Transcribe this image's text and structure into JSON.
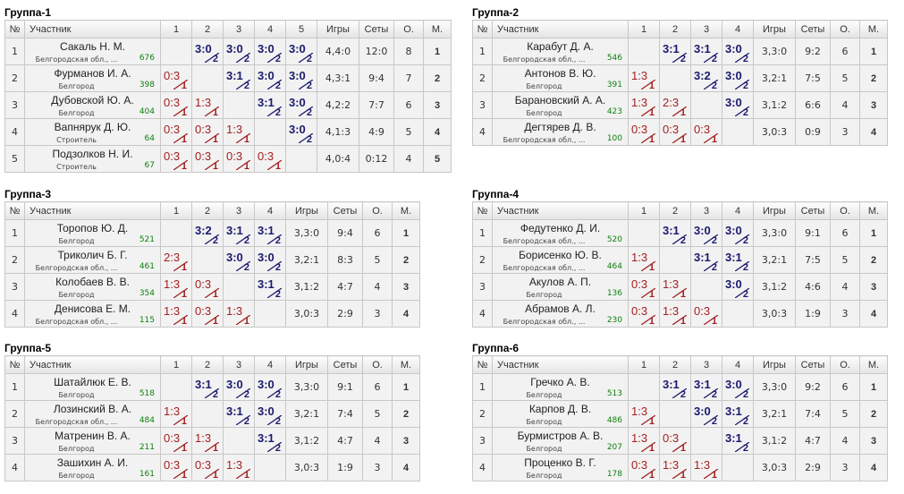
{
  "headers": {
    "num": "№",
    "participant": "Участник",
    "games": "Игры",
    "sets": "Сеты",
    "points": "О.",
    "place": "М."
  },
  "colors": {
    "win": "#1a1a6e",
    "loss": "#a32020",
    "rating": "#108010",
    "place": "#1a2a8a",
    "self_cell": "#cccccc"
  },
  "groups": [
    {
      "title": "Группа-1",
      "players": [
        {
          "n": "1",
          "name": "Сакаль Н. М.",
          "city": "Белгородская обл., ...",
          "rating": "676",
          "results": [
            null,
            {
              "s": "3:0",
              "p": "2"
            },
            {
              "s": "3:0",
              "p": "2"
            },
            {
              "s": "3:0",
              "p": "2"
            },
            {
              "s": "3:0",
              "p": "2"
            }
          ],
          "games": "4,4:0",
          "sets": "12:0",
          "points": "8",
          "place": "1"
        },
        {
          "n": "2",
          "name": "Фурманов И. А.",
          "city": "Белгород",
          "rating": "398",
          "results": [
            {
              "s": "0:3",
              "p": "1"
            },
            null,
            {
              "s": "3:1",
              "p": "2"
            },
            {
              "s": "3:0",
              "p": "2"
            },
            {
              "s": "3:0",
              "p": "2"
            }
          ],
          "games": "4,3:1",
          "sets": "9:4",
          "points": "7",
          "place": "2"
        },
        {
          "n": "3",
          "name": "Дубовской Ю. А.",
          "city": "Белгород",
          "rating": "404",
          "results": [
            {
              "s": "0:3",
              "p": "1"
            },
            {
              "s": "1:3",
              "p": "1"
            },
            null,
            {
              "s": "3:1",
              "p": "2"
            },
            {
              "s": "3:0",
              "p": "2"
            }
          ],
          "games": "4,2:2",
          "sets": "7:7",
          "points": "6",
          "place": "3"
        },
        {
          "n": "4",
          "name": "Вапнярук Д. Ю.",
          "city": "Строитель",
          "rating": "64",
          "results": [
            {
              "s": "0:3",
              "p": "1"
            },
            {
              "s": "0:3",
              "p": "1"
            },
            {
              "s": "1:3",
              "p": "1"
            },
            null,
            {
              "s": "3:0",
              "p": "2"
            }
          ],
          "games": "4,1:3",
          "sets": "4:9",
          "points": "5",
          "place": "4"
        },
        {
          "n": "5",
          "name": "Подзолков Н. И.",
          "city": "Строитель",
          "rating": "67",
          "results": [
            {
              "s": "0:3",
              "p": "1"
            },
            {
              "s": "0:3",
              "p": "1"
            },
            {
              "s": "0:3",
              "p": "1"
            },
            {
              "s": "0:3",
              "p": "1"
            },
            null
          ],
          "games": "4,0:4",
          "sets": "0:12",
          "points": "4",
          "place": "5"
        }
      ]
    },
    {
      "title": "Группа-2",
      "players": [
        {
          "n": "1",
          "name": "Карабут Д. А.",
          "city": "Белгородская обл., ...",
          "rating": "546",
          "results": [
            null,
            {
              "s": "3:1",
              "p": "2"
            },
            {
              "s": "3:1",
              "p": "2"
            },
            {
              "s": "3:0",
              "p": "2"
            }
          ],
          "games": "3,3:0",
          "sets": "9:2",
          "points": "6",
          "place": "1"
        },
        {
          "n": "2",
          "name": "Антонов В. Ю.",
          "city": "Белгород",
          "rating": "391",
          "results": [
            {
              "s": "1:3",
              "p": "1"
            },
            null,
            {
              "s": "3:2",
              "p": "2"
            },
            {
              "s": "3:0",
              "p": "2"
            }
          ],
          "games": "3,2:1",
          "sets": "7:5",
          "points": "5",
          "place": "2"
        },
        {
          "n": "3",
          "name": "Барановский А. А.",
          "city": "Белгород",
          "rating": "423",
          "results": [
            {
              "s": "1:3",
              "p": "1"
            },
            {
              "s": "2:3",
              "p": "1"
            },
            null,
            {
              "s": "3:0",
              "p": "2"
            }
          ],
          "games": "3,1:2",
          "sets": "6:6",
          "points": "4",
          "place": "3"
        },
        {
          "n": "4",
          "name": "Дегтярев Д. В.",
          "city": "Белгородская обл., ...",
          "rating": "100",
          "results": [
            {
              "s": "0:3",
              "p": "1"
            },
            {
              "s": "0:3",
              "p": "1"
            },
            {
              "s": "0:3",
              "p": "1"
            },
            null
          ],
          "games": "3,0:3",
          "sets": "0:9",
          "points": "3",
          "place": "4"
        }
      ]
    },
    {
      "title": "Группа-3",
      "players": [
        {
          "n": "1",
          "name": "Торопов Ю. Д.",
          "city": "Белгород",
          "rating": "521",
          "results": [
            null,
            {
              "s": "3:2",
              "p": "2"
            },
            {
              "s": "3:1",
              "p": "2"
            },
            {
              "s": "3:1",
              "p": "2"
            }
          ],
          "games": "3,3:0",
          "sets": "9:4",
          "points": "6",
          "place": "1"
        },
        {
          "n": "2",
          "name": "Триколич Б. Г.",
          "city": "Белгородская обл., ...",
          "rating": "461",
          "results": [
            {
              "s": "2:3",
              "p": "1"
            },
            null,
            {
              "s": "3:0",
              "p": "2"
            },
            {
              "s": "3:0",
              "p": "2"
            }
          ],
          "games": "3,2:1",
          "sets": "8:3",
          "points": "5",
          "place": "2"
        },
        {
          "n": "3",
          "name": "Колобаев В. В.",
          "city": "Белгород",
          "rating": "354",
          "results": [
            {
              "s": "1:3",
              "p": "1"
            },
            {
              "s": "0:3",
              "p": "1"
            },
            null,
            {
              "s": "3:1",
              "p": "2"
            }
          ],
          "games": "3,1:2",
          "sets": "4:7",
          "points": "4",
          "place": "3"
        },
        {
          "n": "4",
          "name": "Денисова Е. М.",
          "city": "Белгородская обл., ...",
          "rating": "115",
          "results": [
            {
              "s": "1:3",
              "p": "1"
            },
            {
              "s": "0:3",
              "p": "1"
            },
            {
              "s": "1:3",
              "p": "1"
            },
            null
          ],
          "games": "3,0:3",
          "sets": "2:9",
          "points": "3",
          "place": "4"
        }
      ]
    },
    {
      "title": "Группа-4",
      "players": [
        {
          "n": "1",
          "name": "Федутенко Д. И.",
          "city": "Белгородская обл., ...",
          "rating": "520",
          "results": [
            null,
            {
              "s": "3:1",
              "p": "2"
            },
            {
              "s": "3:0",
              "p": "2"
            },
            {
              "s": "3:0",
              "p": "2"
            }
          ],
          "games": "3,3:0",
          "sets": "9:1",
          "points": "6",
          "place": "1"
        },
        {
          "n": "2",
          "name": "Борисенко Ю. В.",
          "city": "Белгородская обл., ...",
          "rating": "464",
          "results": [
            {
              "s": "1:3",
              "p": "1"
            },
            null,
            {
              "s": "3:1",
              "p": "2"
            },
            {
              "s": "3:1",
              "p": "2"
            }
          ],
          "games": "3,2:1",
          "sets": "7:5",
          "points": "5",
          "place": "2"
        },
        {
          "n": "3",
          "name": "Акулов А. П.",
          "city": "Белгород",
          "rating": "136",
          "results": [
            {
              "s": "0:3",
              "p": "1"
            },
            {
              "s": "1:3",
              "p": "1"
            },
            null,
            {
              "s": "3:0",
              "p": "2"
            }
          ],
          "games": "3,1:2",
          "sets": "4:6",
          "points": "4",
          "place": "3"
        },
        {
          "n": "4",
          "name": "Абрамов А. Л.",
          "city": "Белгородская обл., ...",
          "rating": "230",
          "results": [
            {
              "s": "0:3",
              "p": "1"
            },
            {
              "s": "1:3",
              "p": "1"
            },
            {
              "s": "0:3",
              "p": "1"
            },
            null
          ],
          "games": "3,0:3",
          "sets": "1:9",
          "points": "3",
          "place": "4"
        }
      ]
    },
    {
      "title": "Группа-5",
      "players": [
        {
          "n": "1",
          "name": "Шатайлюк Е. В.",
          "city": "Белгород",
          "rating": "518",
          "results": [
            null,
            {
              "s": "3:1",
              "p": "2"
            },
            {
              "s": "3:0",
              "p": "2"
            },
            {
              "s": "3:0",
              "p": "2"
            }
          ],
          "games": "3,3:0",
          "sets": "9:1",
          "points": "6",
          "place": "1"
        },
        {
          "n": "2",
          "name": "Лозинский В. А.",
          "city": "Белгородская обл., ...",
          "rating": "484",
          "results": [
            {
              "s": "1:3",
              "p": "1"
            },
            null,
            {
              "s": "3:1",
              "p": "2"
            },
            {
              "s": "3:0",
              "p": "2"
            }
          ],
          "games": "3,2:1",
          "sets": "7:4",
          "points": "5",
          "place": "2"
        },
        {
          "n": "3",
          "name": "Матренин В. А.",
          "city": "Белгород",
          "rating": "211",
          "results": [
            {
              "s": "0:3",
              "p": "1"
            },
            {
              "s": "1:3",
              "p": "1"
            },
            null,
            {
              "s": "3:1",
              "p": "2"
            }
          ],
          "games": "3,1:2",
          "sets": "4:7",
          "points": "4",
          "place": "3"
        },
        {
          "n": "4",
          "name": "Зашихин А. И.",
          "city": "Белгород",
          "rating": "161",
          "results": [
            {
              "s": "0:3",
              "p": "1"
            },
            {
              "s": "0:3",
              "p": "1"
            },
            {
              "s": "1:3",
              "p": "1"
            },
            null
          ],
          "games": "3,0:3",
          "sets": "1:9",
          "points": "3",
          "place": "4"
        }
      ]
    },
    {
      "title": "Группа-6",
      "players": [
        {
          "n": "1",
          "name": "Гречко А. В.",
          "city": "Белгород",
          "rating": "513",
          "results": [
            null,
            {
              "s": "3:1",
              "p": "2"
            },
            {
              "s": "3:1",
              "p": "2"
            },
            {
              "s": "3:0",
              "p": "2"
            }
          ],
          "games": "3,3:0",
          "sets": "9:2",
          "points": "6",
          "place": "1"
        },
        {
          "n": "2",
          "name": "Карпов Д. В.",
          "city": "Белгород",
          "rating": "486",
          "results": [
            {
              "s": "1:3",
              "p": "1"
            },
            null,
            {
              "s": "3:0",
              "p": "2"
            },
            {
              "s": "3:1",
              "p": "2"
            }
          ],
          "games": "3,2:1",
          "sets": "7:4",
          "points": "5",
          "place": "2"
        },
        {
          "n": "3",
          "name": "Бурмистров А. В.",
          "city": "Белгород",
          "rating": "207",
          "results": [
            {
              "s": "1:3",
              "p": "1"
            },
            {
              "s": "0:3",
              "p": "1"
            },
            null,
            {
              "s": "3:1",
              "p": "2"
            }
          ],
          "games": "3,1:2",
          "sets": "4:7",
          "points": "4",
          "place": "3"
        },
        {
          "n": "4",
          "name": "Проценко В. Г.",
          "city": "Белгород",
          "rating": "178",
          "results": [
            {
              "s": "0:3",
              "p": "1"
            },
            {
              "s": "1:3",
              "p": "1"
            },
            {
              "s": "1:3",
              "p": "1"
            },
            null
          ],
          "games": "3,0:3",
          "sets": "2:9",
          "points": "3",
          "place": "4"
        }
      ]
    }
  ]
}
